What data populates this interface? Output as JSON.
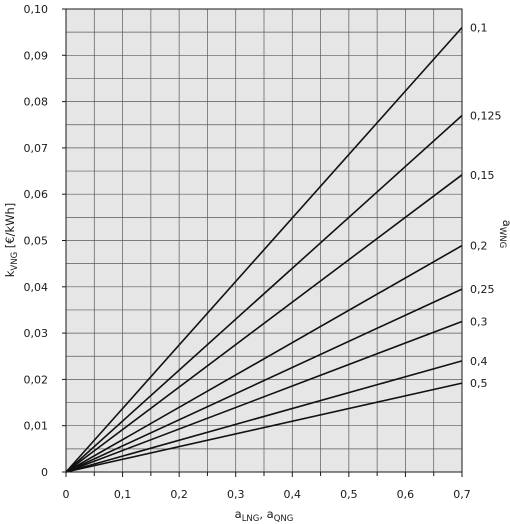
{
  "chart_data": {
    "type": "line",
    "xlabel": "a_LNG, a_QNG",
    "ylabel": "k_VNG [€/kWh]",
    "legend_title": "a_WNG",
    "xlim": [
      0,
      0.7
    ],
    "ylim": [
      0,
      0.1
    ],
    "x_ticks": [
      "0",
      "0,1",
      "0,2",
      "0,3",
      "0,4",
      "0,5",
      "0,6",
      "0,7"
    ],
    "y_ticks": [
      "0",
      "0,01",
      "0,02",
      "0,03",
      "0,04",
      "0,05",
      "0,06",
      "0,07",
      "0,08",
      "0,09",
      "0,10"
    ],
    "grid": true,
    "series": [
      {
        "name": "0,1",
        "x": [
          0,
          0.7
        ],
        "y": [
          0,
          0.096
        ]
      },
      {
        "name": "0,125",
        "x": [
          0,
          0.7
        ],
        "y": [
          0,
          0.077
        ]
      },
      {
        "name": "0,15",
        "x": [
          0,
          0.7
        ],
        "y": [
          0,
          0.0642
        ]
      },
      {
        "name": "0,2",
        "x": [
          0,
          0.7
        ],
        "y": [
          0,
          0.0489
        ]
      },
      {
        "name": "0,25",
        "x": [
          0,
          0.7
        ],
        "y": [
          0,
          0.0395
        ]
      },
      {
        "name": "0,3",
        "x": [
          0,
          0.7
        ],
        "y": [
          0,
          0.0325
        ]
      },
      {
        "name": "0,4",
        "x": [
          0,
          0.7
        ],
        "y": [
          0,
          0.024
        ]
      },
      {
        "name": "0,5",
        "x": [
          0,
          0.7
        ],
        "y": [
          0,
          0.0192
        ]
      }
    ]
  }
}
